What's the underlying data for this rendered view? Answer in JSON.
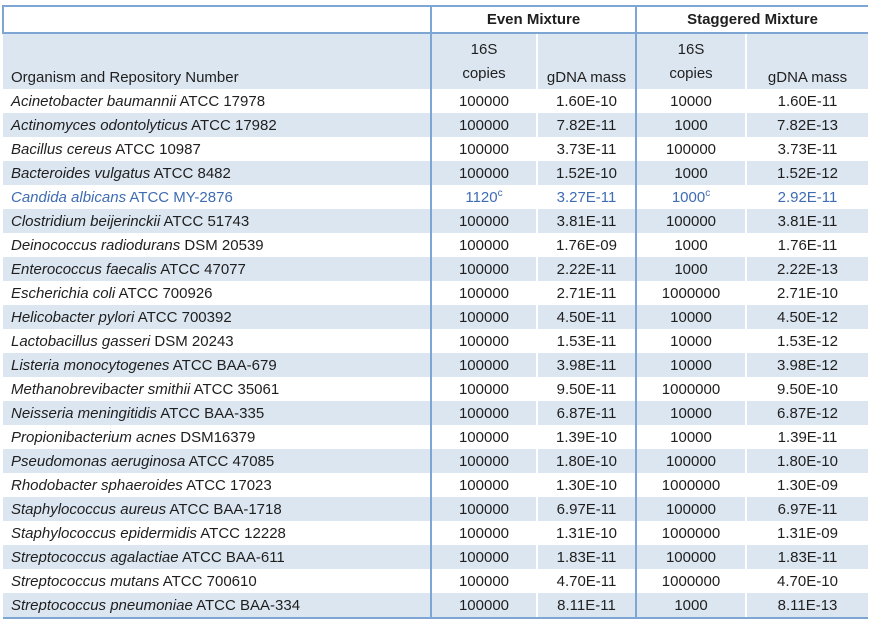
{
  "colors": {
    "band_fill": "#dce6f1",
    "border_blue": "#7ea6d4",
    "highlight_text": "#3f6cb3",
    "text": "#1f1f1f"
  },
  "header": {
    "even_group": "Even Mixture",
    "staggered_group": "Staggered Mixture",
    "organism_column": "Organism and Repository Number",
    "copies_line1": "16S",
    "copies_line2": "copies",
    "mass_label": "gDNA mass"
  },
  "rows": [
    {
      "organism": "Acinetobacter baumannii",
      "repository": "ATCC 17978",
      "even_copies": "100000",
      "even_sup": "",
      "even_mass": "1.60E-10",
      "stag_copies": "10000",
      "stag_sup": "",
      "stag_mass": "1.60E-11",
      "highlight": false
    },
    {
      "organism": "Actinomyces odontolyticus",
      "repository": "ATCC 17982",
      "even_copies": "100000",
      "even_sup": "",
      "even_mass": "7.82E-11",
      "stag_copies": "1000",
      "stag_sup": "",
      "stag_mass": "7.82E-13",
      "highlight": false
    },
    {
      "organism": "Bacillus cereus",
      "repository": "ATCC 10987",
      "even_copies": "100000",
      "even_sup": "",
      "even_mass": "3.73E-11",
      "stag_copies": "100000",
      "stag_sup": "",
      "stag_mass": "3.73E-11",
      "highlight": false
    },
    {
      "organism": "Bacteroides vulgatus",
      "repository": "ATCC 8482",
      "even_copies": "100000",
      "even_sup": "",
      "even_mass": "1.52E-10",
      "stag_copies": "1000",
      "stag_sup": "",
      "stag_mass": "1.52E-12",
      "highlight": false
    },
    {
      "organism": "Candida albicans",
      "repository": "ATCC MY-2876",
      "even_copies": "1120",
      "even_sup": "c",
      "even_mass": "3.27E-11",
      "stag_copies": "1000",
      "stag_sup": "c",
      "stag_mass": "2.92E-11",
      "highlight": true
    },
    {
      "organism": "Clostridium beijerinckii",
      "repository": "ATCC 51743",
      "even_copies": "100000",
      "even_sup": "",
      "even_mass": "3.81E-11",
      "stag_copies": "100000",
      "stag_sup": "",
      "stag_mass": "3.81E-11",
      "highlight": false
    },
    {
      "organism": "Deinococcus radiodurans",
      "repository": "DSM 20539",
      "even_copies": "100000",
      "even_sup": "",
      "even_mass": "1.76E-09",
      "stag_copies": "1000",
      "stag_sup": "",
      "stag_mass": "1.76E-11",
      "highlight": false
    },
    {
      "organism": "Enterococcus faecalis",
      "repository": "ATCC 47077",
      "even_copies": "100000",
      "even_sup": "",
      "even_mass": "2.22E-11",
      "stag_copies": "1000",
      "stag_sup": "",
      "stag_mass": "2.22E-13",
      "highlight": false
    },
    {
      "organism": "Escherichia coli",
      "repository": "ATCC 700926",
      "even_copies": "100000",
      "even_sup": "",
      "even_mass": "2.71E-11",
      "stag_copies": "1000000",
      "stag_sup": "",
      "stag_mass": "2.71E-10",
      "highlight": false
    },
    {
      "organism": "Helicobacter pylori",
      "repository": "ATCC 700392",
      "even_copies": "100000",
      "even_sup": "",
      "even_mass": "4.50E-11",
      "stag_copies": "10000",
      "stag_sup": "",
      "stag_mass": "4.50E-12",
      "highlight": false
    },
    {
      "organism": "Lactobacillus gasseri",
      "repository": "DSM 20243",
      "even_copies": "100000",
      "even_sup": "",
      "even_mass": "1.53E-11",
      "stag_copies": "10000",
      "stag_sup": "",
      "stag_mass": "1.53E-12",
      "highlight": false
    },
    {
      "organism": "Listeria monocytogenes",
      "repository": "ATCC BAA-679",
      "even_copies": "100000",
      "even_sup": "",
      "even_mass": "3.98E-11",
      "stag_copies": "10000",
      "stag_sup": "",
      "stag_mass": "3.98E-12",
      "highlight": false
    },
    {
      "organism": "Methanobrevibacter smithii",
      "repository": "ATCC 35061",
      "even_copies": "100000",
      "even_sup": "",
      "even_mass": "9.50E-11",
      "stag_copies": "1000000",
      "stag_sup": "",
      "stag_mass": "9.50E-10",
      "highlight": false
    },
    {
      "organism": "Neisseria meningitidis",
      "repository": "ATCC BAA-335",
      "even_copies": "100000",
      "even_sup": "",
      "even_mass": "6.87E-11",
      "stag_copies": "10000",
      "stag_sup": "",
      "stag_mass": "6.87E-12",
      "highlight": false
    },
    {
      "organism": "Propionibacterium acnes",
      "repository": "DSM16379",
      "even_copies": "100000",
      "even_sup": "",
      "even_mass": "1.39E-10",
      "stag_copies": "10000",
      "stag_sup": "",
      "stag_mass": "1.39E-11",
      "highlight": false
    },
    {
      "organism": "Pseudomonas aeruginosa",
      "repository": "ATCC 47085",
      "even_copies": "100000",
      "even_sup": "",
      "even_mass": "1.80E-10",
      "stag_copies": "100000",
      "stag_sup": "",
      "stag_mass": "1.80E-10",
      "highlight": false
    },
    {
      "organism": "Rhodobacter sphaeroides",
      "repository": "ATCC 17023",
      "even_copies": "100000",
      "even_sup": "",
      "even_mass": "1.30E-10",
      "stag_copies": "1000000",
      "stag_sup": "",
      "stag_mass": "1.30E-09",
      "highlight": false
    },
    {
      "organism": "Staphylococcus aureus",
      "repository": "ATCC BAA-1718",
      "even_copies": "100000",
      "even_sup": "",
      "even_mass": "6.97E-11",
      "stag_copies": "100000",
      "stag_sup": "",
      "stag_mass": "6.97E-11",
      "highlight": false
    },
    {
      "organism": "Staphylococcus epidermidis",
      "repository": "ATCC 12228",
      "even_copies": "100000",
      "even_sup": "",
      "even_mass": "1.31E-10",
      "stag_copies": "1000000",
      "stag_sup": "",
      "stag_mass": "1.31E-09",
      "highlight": false
    },
    {
      "organism": "Streptococcus agalactiae",
      "repository": "ATCC BAA-611",
      "even_copies": "100000",
      "even_sup": "",
      "even_mass": "1.83E-11",
      "stag_copies": "100000",
      "stag_sup": "",
      "stag_mass": "1.83E-11",
      "highlight": false
    },
    {
      "organism": "Streptococcus mutans",
      "repository": "ATCC 700610",
      "even_copies": "100000",
      "even_sup": "",
      "even_mass": "4.70E-11",
      "stag_copies": "1000000",
      "stag_sup": "",
      "stag_mass": "4.70E-10",
      "highlight": false
    },
    {
      "organism": "Streptococcus pneumoniae",
      "repository": "ATCC BAA-334",
      "even_copies": "100000",
      "even_sup": "",
      "even_mass": "8.11E-11",
      "stag_copies": "1000",
      "stag_sup": "",
      "stag_mass": "8.11E-13",
      "highlight": false
    }
  ]
}
